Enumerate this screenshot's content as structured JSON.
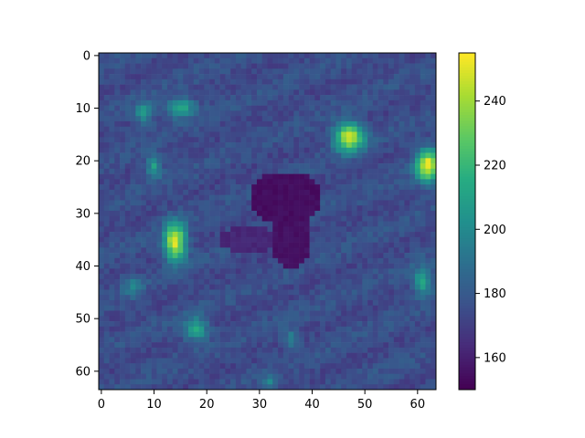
{
  "chart_data": {
    "type": "heatmap",
    "title": "",
    "xlabel": "",
    "ylabel": "",
    "grid": false,
    "shape": [
      64,
      64
    ],
    "xlim": [
      -0.5,
      63.5
    ],
    "ylim": [
      63.5,
      -0.5
    ],
    "x_ticks": [
      0,
      10,
      20,
      30,
      40,
      50,
      60
    ],
    "y_ticks": [
      0,
      10,
      20,
      30,
      40,
      50,
      60
    ],
    "colormap": "viridis",
    "colorbar": {
      "min": 150,
      "max": 255,
      "ticks": [
        160,
        180,
        200,
        220,
        240
      ],
      "placement": "right"
    },
    "background_value": 175,
    "features": [
      {
        "kind": "dark-blob",
        "label_visible": false,
        "cx": 35,
        "cy": 27,
        "rx": 7,
        "ry": 5,
        "value": 152
      },
      {
        "kind": "dark-blob",
        "label_visible": false,
        "cx": 36,
        "cy": 35,
        "rx": 3.5,
        "ry": 6,
        "value": 153
      },
      {
        "kind": "dark-blob",
        "label_visible": false,
        "cx": 28,
        "cy": 35,
        "rx": 6,
        "ry": 2.5,
        "value": 160
      },
      {
        "kind": "bright-spot",
        "label_visible": false,
        "cx": 14,
        "cy": 35.5,
        "rx": 2.2,
        "ry": 4,
        "value": 252
      },
      {
        "kind": "bright-spot",
        "label_visible": false,
        "cx": 47,
        "cy": 15.5,
        "rx": 3,
        "ry": 3,
        "value": 250
      },
      {
        "kind": "bright-spot",
        "label_visible": false,
        "cx": 62,
        "cy": 21,
        "rx": 2.5,
        "ry": 3.5,
        "value": 252
      },
      {
        "kind": "faint-spot",
        "label_visible": false,
        "cx": 15,
        "cy": 10,
        "rx": 3,
        "ry": 2,
        "value": 215
      },
      {
        "kind": "faint-spot",
        "label_visible": false,
        "cx": 8,
        "cy": 11,
        "rx": 2,
        "ry": 2,
        "value": 210
      },
      {
        "kind": "faint-spot",
        "label_visible": false,
        "cx": 10,
        "cy": 21,
        "rx": 1.5,
        "ry": 2.5,
        "value": 212
      },
      {
        "kind": "faint-spot",
        "label_visible": false,
        "cx": 18,
        "cy": 52,
        "rx": 2.5,
        "ry": 2.5,
        "value": 215
      },
      {
        "kind": "faint-spot",
        "label_visible": false,
        "cx": 61,
        "cy": 43,
        "rx": 2,
        "ry": 3,
        "value": 212
      },
      {
        "kind": "faint-spot",
        "label_visible": false,
        "cx": 36,
        "cy": 54,
        "rx": 1.5,
        "ry": 2,
        "value": 200
      },
      {
        "kind": "faint-spot",
        "label_visible": false,
        "cx": 32,
        "cy": 62,
        "rx": 1.5,
        "ry": 1.5,
        "value": 200
      },
      {
        "kind": "faint-spot",
        "label_visible": false,
        "cx": 6,
        "cy": 44,
        "rx": 2,
        "ry": 2,
        "value": 195
      }
    ]
  }
}
